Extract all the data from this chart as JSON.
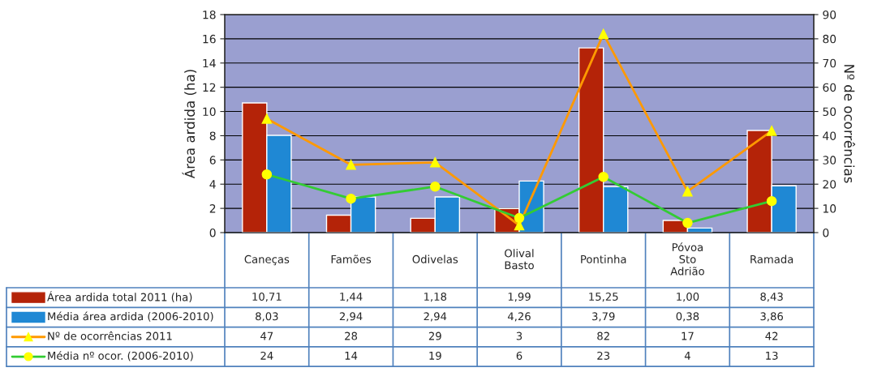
{
  "chart_data": {
    "type": "bar",
    "categories": [
      "Caneças",
      "Famões",
      "Odivelas",
      "Olival Basto",
      "Pontinha",
      "Póvoa Sto Adrião",
      "Ramada"
    ],
    "ylabel": "Área ardida (ha)",
    "y2label": "Nº de ocorrências",
    "ylim": [
      0,
      18
    ],
    "yticks": [
      0,
      2,
      4,
      6,
      8,
      10,
      12,
      14,
      16,
      18
    ],
    "y2lim": [
      0,
      90
    ],
    "y2ticks": [
      0,
      10,
      20,
      30,
      40,
      50,
      60,
      70,
      80,
      90
    ],
    "grid": "y",
    "legend": "bottom left",
    "series": [
      {
        "name": "Área ardida total 2011 (ha)",
        "color": "#b42308",
        "values": [
          10.71,
          1.44,
          1.18,
          1.99,
          15.25,
          1.0,
          8.43
        ],
        "value_labels": [
          "10,71",
          "1,44",
          "1,18",
          "1,99",
          "15,25",
          "1,00",
          "8,43"
        ]
      },
      {
        "name": "Média área ardida (2006-2010)",
        "color": "#1f88d4",
        "values": [
          8.03,
          2.94,
          2.94,
          4.26,
          3.79,
          0.38,
          3.86
        ],
        "value_labels": [
          "8,03",
          "2,94",
          "2,94",
          "4,26",
          "3,79",
          "0,38",
          "3,86"
        ]
      },
      {
        "name": "Nº de ocorrências 2011",
        "type": "line",
        "axis": "y2",
        "color": "#ff9900",
        "marker": "triangle",
        "values": [
          47,
          28,
          29,
          3,
          82,
          17,
          42
        ],
        "value_labels": [
          "47",
          "28",
          "29",
          "3",
          "82",
          "17",
          "42"
        ]
      },
      {
        "name": "Média nº ocor. (2006-2010)",
        "type": "line",
        "axis": "y2",
        "color": "#33cc33",
        "marker": "circle",
        "values": [
          24,
          14,
          19,
          6,
          23,
          4,
          13
        ],
        "value_labels": [
          "24",
          "14",
          "19",
          "6",
          "23",
          "4",
          "13"
        ]
      }
    ]
  }
}
